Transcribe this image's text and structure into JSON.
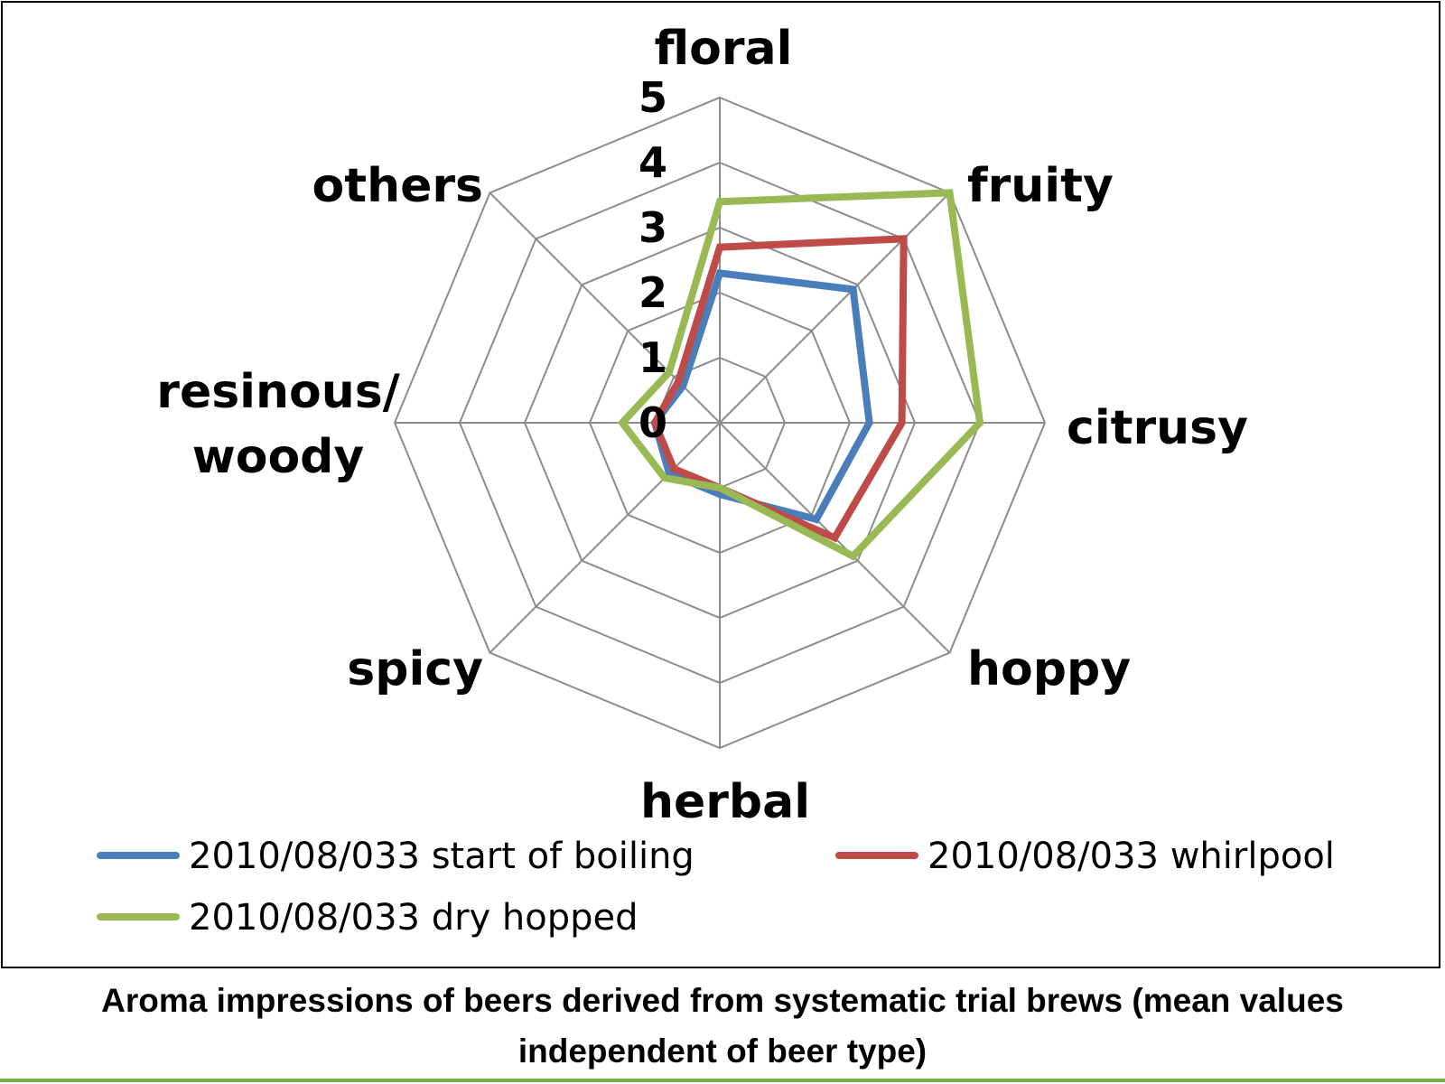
{
  "chart_data": {
    "type": "radar",
    "axes": [
      "floral",
      "fruity",
      "citrusy",
      "hoppy",
      "herbal",
      "spicy",
      "resinous/ woody",
      "others"
    ],
    "axis_label_lines": [
      [
        "floral"
      ],
      [
        "fruity"
      ],
      [
        "citrusy"
      ],
      [
        "hoppy"
      ],
      [
        "herbal"
      ],
      [
        "spicy"
      ],
      [
        "resinous/",
        "woody"
      ],
      [
        "others"
      ]
    ],
    "range": [
      0,
      5
    ],
    "ticks": [
      "0",
      "1",
      "2",
      "3",
      "4",
      "5"
    ],
    "grid": true,
    "legend_position": "bottom",
    "series": [
      {
        "name": "2010/08/033 start of boiling",
        "color": "#4a7ebb",
        "values": [
          2.3,
          2.9,
          2.3,
          2.1,
          1.1,
          1.1,
          1.0,
          0.8
        ]
      },
      {
        "name": "2010/08/033 whirlpool",
        "color": "#be4b48",
        "values": [
          2.7,
          4.0,
          2.8,
          2.5,
          1.0,
          1.0,
          1.0,
          0.9
        ]
      },
      {
        "name": "2010/08/033 dry hopped",
        "color": "#98b954",
        "values": [
          3.4,
          5.0,
          4.0,
          2.9,
          1.0,
          1.2,
          1.5,
          1.1
        ]
      }
    ],
    "caption": "Aroma impressions of beers derived from systematic trial brews (mean values independent of beer type)"
  }
}
